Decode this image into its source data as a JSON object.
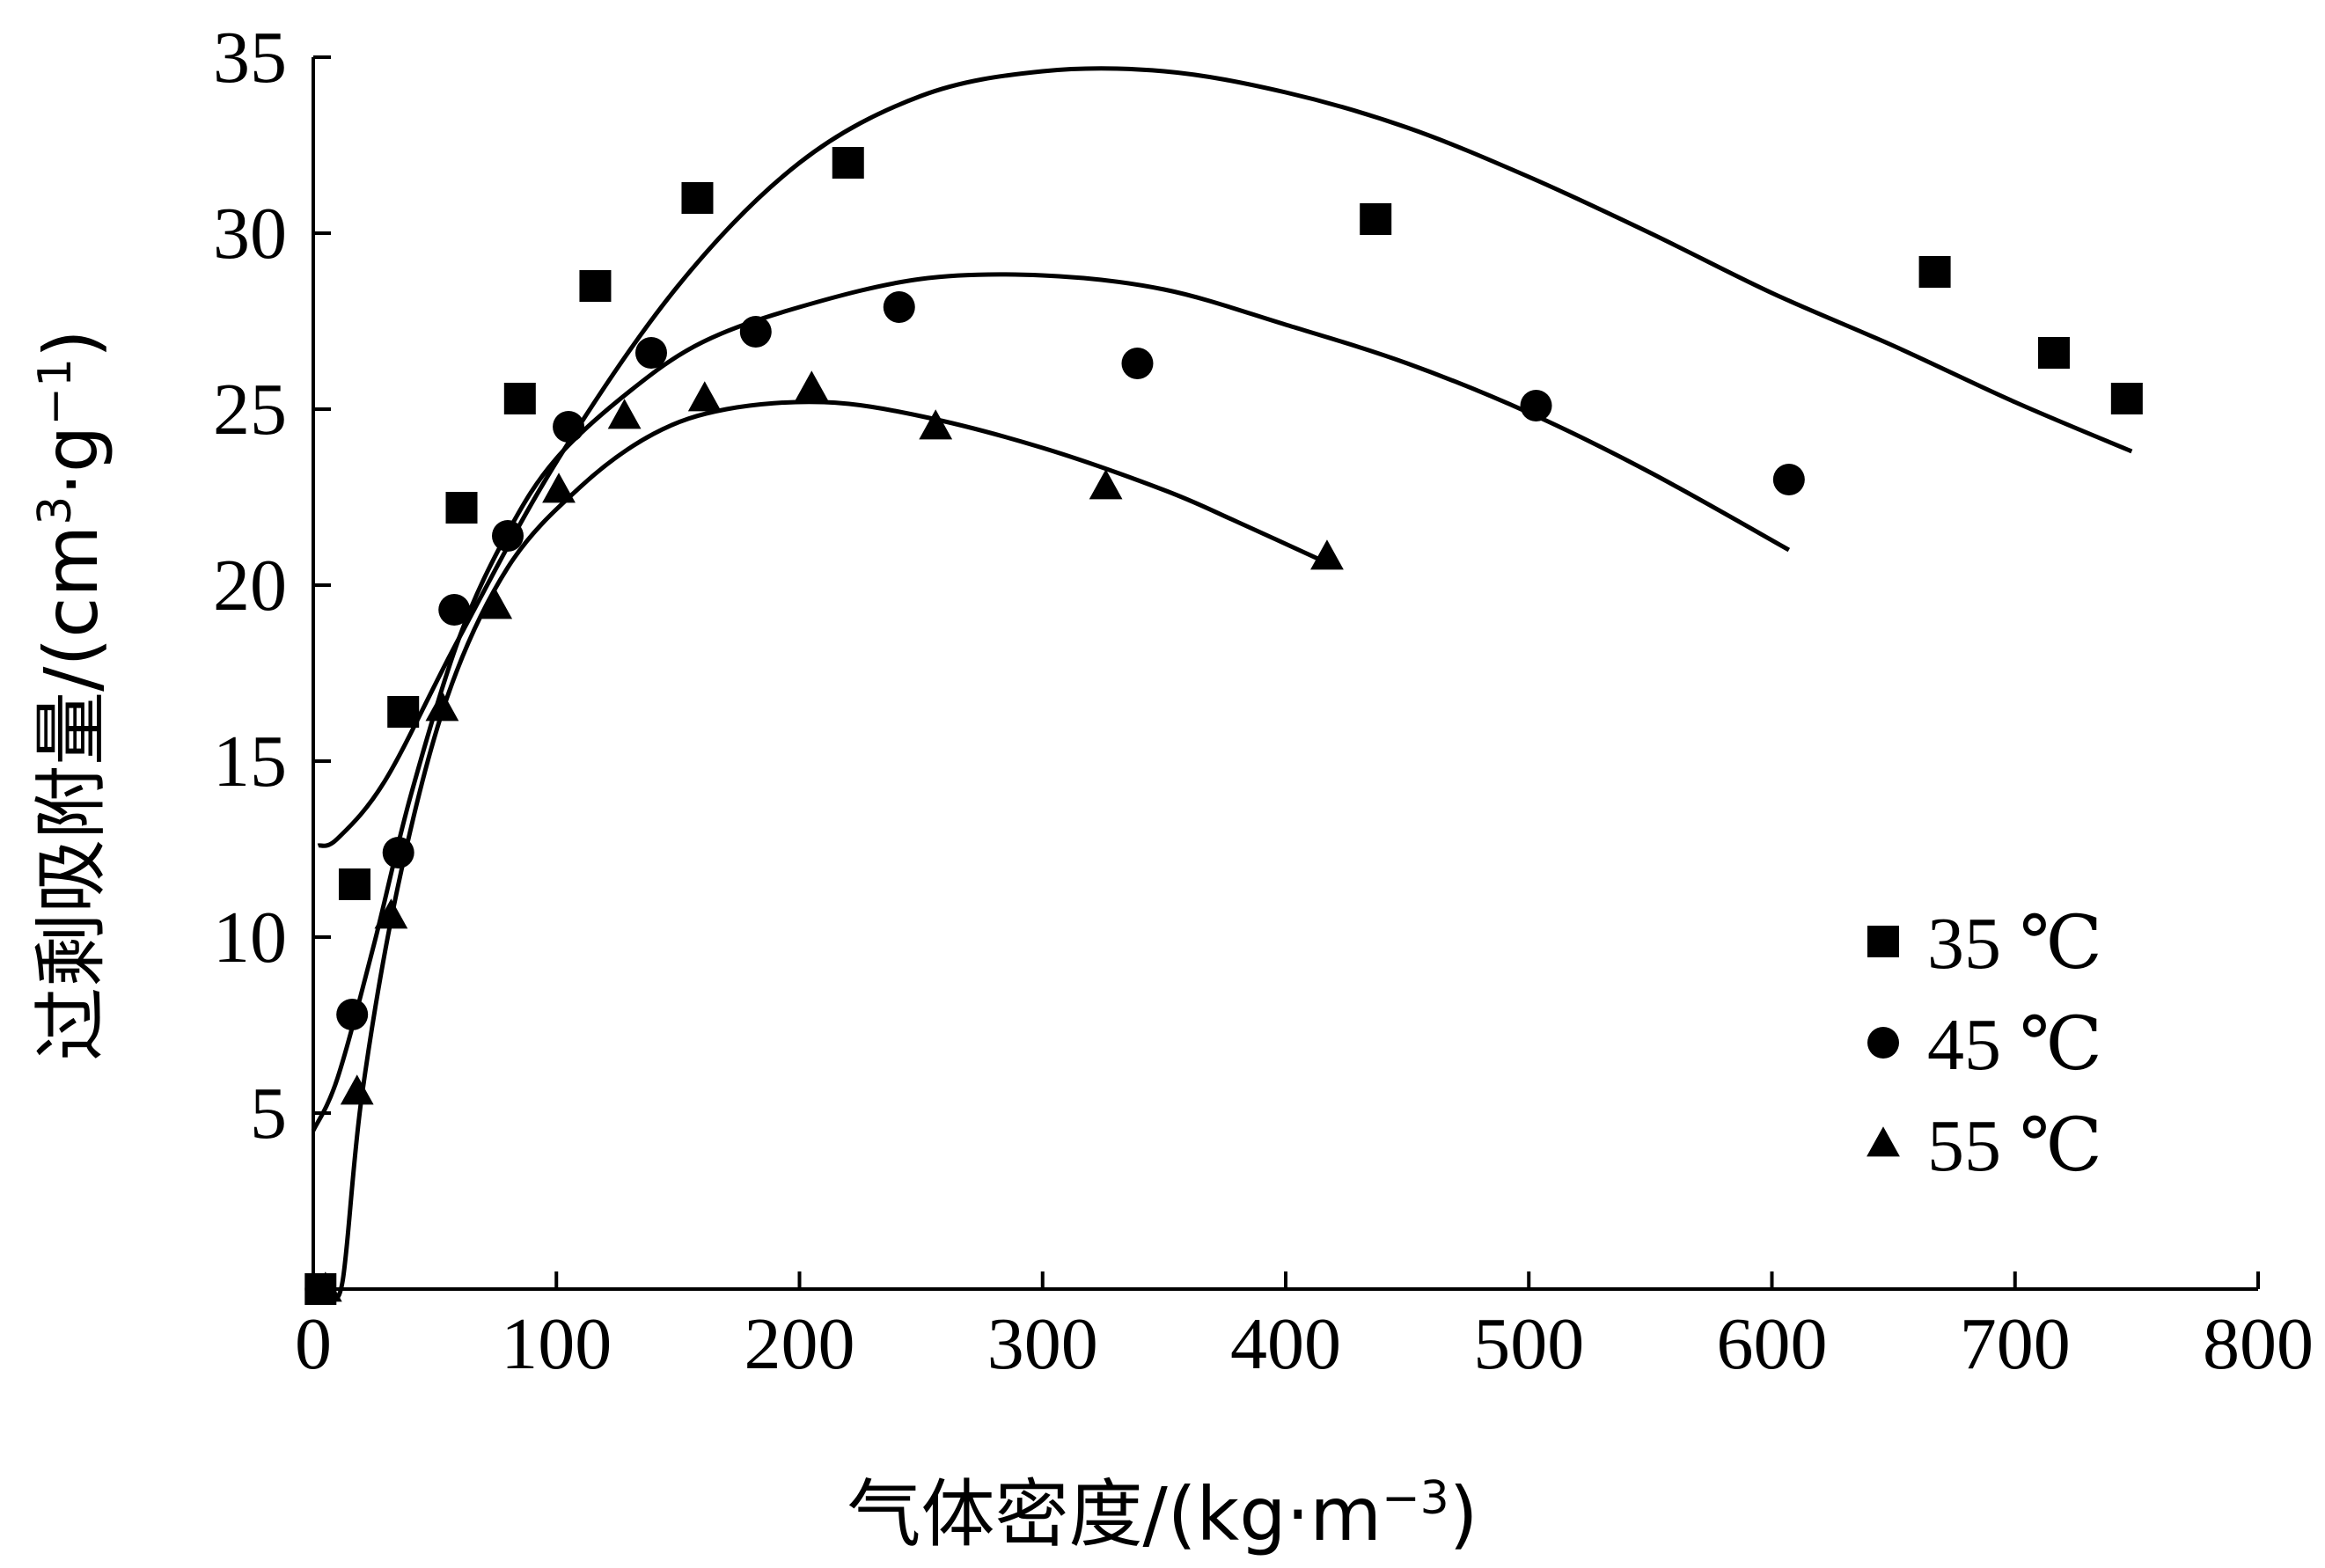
{
  "chart_data": {
    "type": "scatter",
    "xlabel": "气体密度/(kg·m",
    "xlabel_sup": "−3",
    "xlabel_tail": ")",
    "ylabel": "过剩吸附量/(cm",
    "ylabel_sup1": "3",
    "ylabel_mid": "·g",
    "ylabel_sup2": "−1",
    "ylabel_tail": ")",
    "xlim": [
      0,
      800
    ],
    "ylim": [
      0,
      35
    ],
    "xticks": [
      0,
      100,
      200,
      300,
      400,
      500,
      600,
      700,
      800
    ],
    "yticks": [
      5,
      10,
      15,
      20,
      25,
      30,
      35
    ],
    "x_tick_labels": [
      "0",
      "100",
      "200",
      "300",
      "400",
      "500",
      "600",
      "700",
      "800"
    ],
    "y_tick_labels": [
      "5",
      "10",
      "15",
      "20",
      "25",
      "30",
      "35"
    ],
    "grid": false,
    "legend_position": "bottom-right",
    "series": [
      {
        "name": "35 ℃",
        "marker": "square",
        "color": "#000000",
        "points": [
          [
            3,
            0
          ],
          [
            17,
            11.5
          ],
          [
            37,
            16.4
          ],
          [
            61,
            22.2
          ],
          [
            85,
            25.3
          ],
          [
            116,
            28.5
          ],
          [
            158,
            31.0
          ],
          [
            220,
            32.0
          ],
          [
            437,
            30.4
          ],
          [
            667,
            28.9
          ],
          [
            716,
            26.6
          ],
          [
            746,
            25.3
          ]
        ],
        "fit": [
          [
            2,
            12.6
          ],
          [
            10,
            12.8
          ],
          [
            30,
            14.5
          ],
          [
            60,
            18.5
          ],
          [
            100,
            23.5
          ],
          [
            150,
            28.5
          ],
          [
            200,
            32.0
          ],
          [
            250,
            33.9
          ],
          [
            300,
            34.6
          ],
          [
            350,
            34.6
          ],
          [
            400,
            34.0
          ],
          [
            450,
            33.0
          ],
          [
            500,
            31.6
          ],
          [
            550,
            30.0
          ],
          [
            600,
            28.3
          ],
          [
            650,
            26.8
          ],
          [
            700,
            25.2
          ],
          [
            748,
            23.8
          ]
        ]
      },
      {
        "name": "45 ℃",
        "marker": "circle",
        "color": "#000000",
        "points": [
          [
            3,
            0
          ],
          [
            16,
            7.8
          ],
          [
            35,
            12.4
          ],
          [
            58,
            19.3
          ],
          [
            80,
            21.4
          ],
          [
            105,
            24.5
          ],
          [
            139,
            26.6
          ],
          [
            182,
            27.2
          ],
          [
            241,
            27.9
          ],
          [
            339,
            26.3
          ],
          [
            503,
            25.1
          ],
          [
            607,
            23.0
          ]
        ],
        "fit": [
          [
            0,
            4.5
          ],
          [
            10,
            6.0
          ],
          [
            25,
            9.8
          ],
          [
            40,
            14.0
          ],
          [
            60,
            18.5
          ],
          [
            80,
            21.5
          ],
          [
            100,
            23.6
          ],
          [
            130,
            25.5
          ],
          [
            160,
            26.9
          ],
          [
            200,
            27.9
          ],
          [
            250,
            28.7
          ],
          [
            300,
            28.8
          ],
          [
            350,
            28.4
          ],
          [
            400,
            27.4
          ],
          [
            450,
            26.3
          ],
          [
            500,
            24.9
          ],
          [
            550,
            23.2
          ],
          [
            607,
            21.0
          ]
        ]
      },
      {
        "name": "55 ℃",
        "marker": "triangle",
        "color": "#000000",
        "points": [
          [
            5,
            0
          ],
          [
            18,
            5.6
          ],
          [
            32,
            10.6
          ],
          [
            53,
            16.5
          ],
          [
            75,
            19.4
          ],
          [
            101,
            22.7
          ],
          [
            128,
            24.8
          ],
          [
            161,
            25.3
          ],
          [
            205,
            25.6
          ],
          [
            256,
            24.5
          ],
          [
            326,
            22.8
          ],
          [
            417,
            20.8
          ]
        ],
        "fit": [
          [
            6,
            0
          ],
          [
            12,
            0.2
          ],
          [
            20,
            5.5
          ],
          [
            35,
            11.5
          ],
          [
            55,
            16.8
          ],
          [
            80,
            20.5
          ],
          [
            110,
            22.8
          ],
          [
            140,
            24.3
          ],
          [
            170,
            25.0
          ],
          [
            210,
            25.2
          ],
          [
            250,
            24.8
          ],
          [
            300,
            23.9
          ],
          [
            350,
            22.7
          ],
          [
            380,
            21.8
          ],
          [
            418,
            20.6
          ]
        ]
      }
    ]
  }
}
